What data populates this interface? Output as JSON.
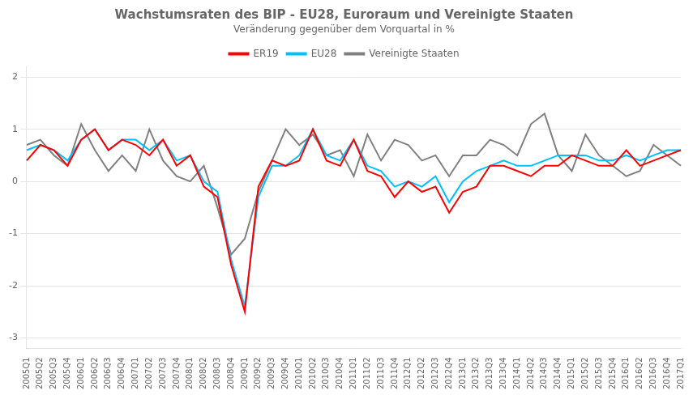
{
  "chart_data": {
    "type": "line",
    "title": "Wachstumsraten des BIP - EU28, Euroraum und Vereinigte Staaten",
    "subtitle": "Veränderung gegenüber dem Vorquartal in %",
    "categories": [
      "2005Q1",
      "2005Q2",
      "2005Q3",
      "2005Q4",
      "2006Q1",
      "2006Q2",
      "2006Q3",
      "2006Q4",
      "2007Q1",
      "2007Q2",
      "2007Q3",
      "2007Q4",
      "2008Q1",
      "2008Q2",
      "2008Q3",
      "2008Q4",
      "2009Q1",
      "2009Q2",
      "2009Q3",
      "2009Q4",
      "2010Q1",
      "2010Q2",
      "2010Q3",
      "2010Q4",
      "2011Q1",
      "2011Q2",
      "2011Q3",
      "2011Q4",
      "2012Q1",
      "2012Q2",
      "2012Q3",
      "2012Q4",
      "2013Q1",
      "2013Q2",
      "2013Q3",
      "2013Q4",
      "2014Q1",
      "2014Q2",
      "2014Q3",
      "2014Q4",
      "2015Q1",
      "2015Q2",
      "2015Q3",
      "2015Q4",
      "2016Q1",
      "2016Q2",
      "2016Q3",
      "2016Q4",
      "2017Q1"
    ],
    "series": [
      {
        "name": "ER19",
        "color": "#ff0000",
        "values": [
          0.4,
          0.7,
          0.6,
          0.3,
          0.8,
          1.0,
          0.6,
          0.8,
          0.7,
          0.5,
          0.8,
          0.3,
          0.5,
          -0.1,
          -0.3,
          -1.6,
          -2.5,
          -0.1,
          0.4,
          0.3,
          0.4,
          1.0,
          0.4,
          0.3,
          0.8,
          0.2,
          0.1,
          -0.3,
          0.0,
          -0.2,
          -0.1,
          -0.6,
          -0.2,
          -0.1,
          0.3,
          0.3,
          0.2,
          0.1,
          0.3,
          0.3,
          0.5,
          0.4,
          0.3,
          0.3,
          0.6,
          0.3,
          0.4,
          0.5,
          0.6
        ]
      },
      {
        "name": "EU28",
        "color": "#00bfff",
        "values": [
          0.6,
          0.7,
          0.6,
          0.4,
          0.8,
          1.0,
          0.6,
          0.8,
          0.8,
          0.6,
          0.8,
          0.4,
          0.5,
          0.0,
          -0.2,
          -1.5,
          -2.4,
          -0.3,
          0.3,
          0.3,
          0.5,
          1.0,
          0.5,
          0.4,
          0.8,
          0.3,
          0.2,
          -0.1,
          0.0,
          -0.1,
          0.1,
          -0.4,
          0.0,
          0.2,
          0.3,
          0.4,
          0.3,
          0.3,
          0.4,
          0.5,
          0.5,
          0.5,
          0.4,
          0.4,
          0.5,
          0.4,
          0.5,
          0.6,
          0.6
        ]
      },
      {
        "name": "Vereinigte Staaten",
        "color": "#808080",
        "values": [
          0.7,
          0.8,
          0.5,
          0.3,
          1.1,
          0.6,
          0.2,
          0.5,
          0.2,
          1.0,
          0.4,
          0.1,
          0.0,
          0.3,
          -0.5,
          -1.4,
          -1.1,
          -0.2,
          0.4,
          1.0,
          0.7,
          0.9,
          0.5,
          0.6,
          0.1,
          0.9,
          0.4,
          0.8,
          0.7,
          0.4,
          0.5,
          0.1,
          0.5,
          0.5,
          0.8,
          0.7,
          0.5,
          1.1,
          1.3,
          0.5,
          0.2,
          0.9,
          0.5,
          0.3,
          0.1,
          0.2,
          0.7,
          0.5,
          0.3
        ]
      }
    ],
    "ylim": [
      -3.2,
      2.2
    ],
    "yticks": [
      -3,
      -2,
      -1,
      0,
      1,
      2
    ],
    "grid": true,
    "legend": "top"
  }
}
